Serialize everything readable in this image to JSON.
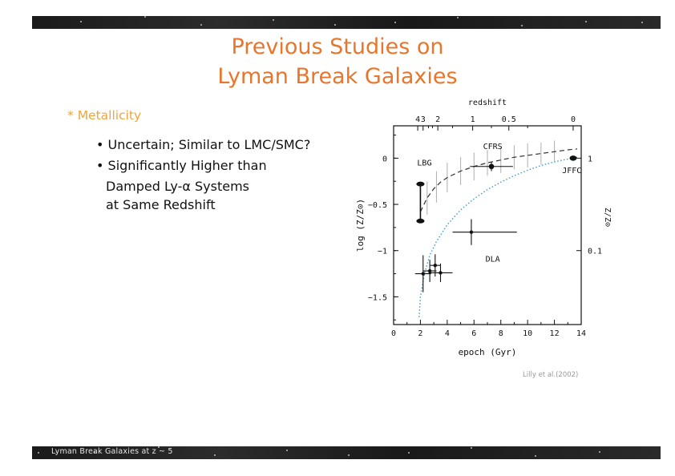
{
  "slide": {
    "title_line1": "Previous Studies on",
    "title_line2": "Lyman Break Galaxies",
    "section_heading": "Metallicity",
    "bullets": [
      {
        "lines": [
          "Uncertain; Similar to LMC/SMC?"
        ]
      },
      {
        "lines": [
          "Significantly Higher than",
          "Damped Ly-α Systems",
          "at Same Redshift"
        ]
      }
    ],
    "credit": "Lilly et al.(2002)",
    "footer": "Lyman Break Galaxies at z ~ 5"
  },
  "colors": {
    "title": "#e8762c",
    "section": "#f2a43b",
    "bar": "#222222",
    "curve_dotted": "#3a9bd2"
  },
  "chart_data": {
    "type": "scatter",
    "xlabel": "epoch (Gyr)",
    "ylabel": "log (Z/Z⊙)",
    "top_axis_label": "redshift",
    "right_axis_label": "Z/Z⊙",
    "xlim": [
      0,
      14
    ],
    "ylim": [
      -1.8,
      0.35
    ],
    "x_ticks": [
      0,
      2,
      4,
      6,
      8,
      10,
      12,
      14
    ],
    "y_ticks": [
      {
        "v": 0,
        "label": "0"
      },
      {
        "v": -0.5,
        "label": "−0.5"
      },
      {
        "v": -1,
        "label": "−1"
      },
      {
        "v": -1.5,
        "label": "−1.5"
      }
    ],
    "top_ticks": [
      {
        "x": 1.8,
        "label": "4"
      },
      {
        "x": 2.2,
        "label": "3"
      },
      {
        "x": 3.3,
        "label": "2"
      },
      {
        "x": 5.9,
        "label": "1"
      },
      {
        "x": 8.6,
        "label": "0.5"
      },
      {
        "x": 13.4,
        "label": "0"
      }
    ],
    "right_ticks": [
      {
        "v": 0,
        "label": "1"
      },
      {
        "v": -1,
        "label": "0.1"
      }
    ],
    "annotations": [
      {
        "text": "LBG",
        "x": 2.3,
        "y": -0.08
      },
      {
        "text": "CFRS",
        "x": 7.4,
        "y": 0.1
      },
      {
        "text": "JFFC",
        "x": 13.3,
        "y": -0.16
      },
      {
        "text": "DLA",
        "x": 7.4,
        "y": -1.12
      }
    ],
    "series": [
      {
        "name": "LBG",
        "points": [
          {
            "x": 2.0,
            "y": -0.28,
            "xerr": [
              0.3,
              0.3
            ],
            "yerr": [
              0.02,
              0.02
            ]
          },
          {
            "x": 2.0,
            "y": -0.68,
            "xerr": [
              0.3,
              0.3
            ],
            "yerr": [
              0.02,
              0.02
            ]
          }
        ]
      },
      {
        "name": "CFRS",
        "points": [
          {
            "x": 7.3,
            "y": -0.09,
            "xerr": [
              1.6,
              1.6
            ],
            "yerr": [
              0.05,
              0.05
            ]
          }
        ]
      },
      {
        "name": "JFFC",
        "points": [
          {
            "x": 13.4,
            "y": 0.0,
            "xerr": [
              0,
              0
            ],
            "yerr": [
              0,
              0
            ]
          }
        ]
      },
      {
        "name": "DLA",
        "points": [
          {
            "x": 2.2,
            "y": -1.25,
            "xerr": [
              0.6,
              0.6
            ],
            "yerr": [
              0.2,
              0.2
            ]
          },
          {
            "x": 2.7,
            "y": -1.22,
            "xerr": [
              0.5,
              0.5
            ],
            "yerr": [
              0.12,
              0.12
            ]
          },
          {
            "x": 3.1,
            "y": -1.16,
            "xerr": [
              0.4,
              0.4
            ],
            "yerr": [
              0.12,
              0.12
            ]
          },
          {
            "x": 3.5,
            "y": -1.24,
            "xerr": [
              0.9,
              0.9
            ],
            "yerr": [
              0.1,
              0.1
            ]
          },
          {
            "x": 5.8,
            "y": -0.8,
            "xerr": [
              1.4,
              3.4
            ],
            "yerr": [
              0.14,
              0.14
            ]
          }
        ]
      }
    ],
    "model_dashed": {
      "x": [
        2.0,
        2.5,
        3.0,
        3.5,
        4.0,
        5.0,
        6.0,
        7.0,
        8.0,
        9.0,
        10.0,
        11.0,
        12.0,
        13.0,
        13.7
      ],
      "y": [
        -0.58,
        -0.43,
        -0.33,
        -0.26,
        -0.21,
        -0.14,
        -0.09,
        -0.05,
        -0.02,
        0.01,
        0.03,
        0.05,
        0.07,
        0.09,
        0.1
      ],
      "error_bars": [
        {
          "x": 2.5,
          "y": -0.43,
          "err": 0.18
        },
        {
          "x": 3.2,
          "y": -0.31,
          "err": 0.17
        },
        {
          "x": 4.0,
          "y": -0.21,
          "err": 0.16
        },
        {
          "x": 5.0,
          "y": -0.14,
          "err": 0.15
        },
        {
          "x": 6.0,
          "y": -0.09,
          "err": 0.15
        },
        {
          "x": 7.0,
          "y": -0.05,
          "err": 0.14
        },
        {
          "x": 8.0,
          "y": -0.02,
          "err": 0.14
        },
        {
          "x": 9.0,
          "y": 0.01,
          "err": 0.13
        },
        {
          "x": 10.0,
          "y": 0.03,
          "err": 0.13
        },
        {
          "x": 11.0,
          "y": 0.05,
          "err": 0.12
        },
        {
          "x": 12.0,
          "y": 0.07,
          "err": 0.12
        }
      ]
    },
    "model_dotted": {
      "x": [
        1.9,
        2.0,
        2.3,
        2.7,
        3.2,
        4.0,
        5.0,
        6.0,
        7.0,
        8.0,
        9.0,
        10.0,
        11.0,
        12.0,
        13.0,
        13.7
      ],
      "y": [
        -1.72,
        -1.5,
        -1.25,
        -1.05,
        -0.9,
        -0.72,
        -0.56,
        -0.44,
        -0.34,
        -0.26,
        -0.19,
        -0.13,
        -0.08,
        -0.04,
        -0.01,
        0.01
      ]
    }
  }
}
